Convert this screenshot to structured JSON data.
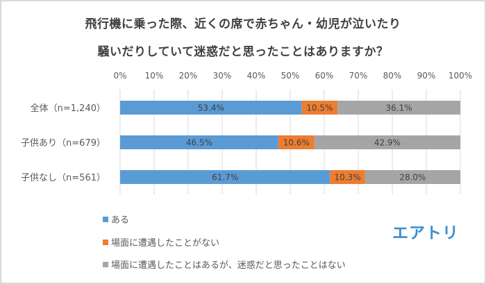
{
  "chart_data": {
    "type": "bar",
    "orientation": "horizontal",
    "stacked": true,
    "title_lines": [
      "飛行機に乗った際、近くの席で赤ちゃん・幼児が泣いたり",
      "騒いだりしていて迷惑だと思ったことはありますか？"
    ],
    "categories": [
      "全体（n=1,240）",
      "子供あり（n=679）",
      "子供なし（n=561）"
    ],
    "series": [
      {
        "name": "ある",
        "color": "#5b9bd5",
        "values": [
          53.4,
          46.5,
          61.7
        ],
        "labels": [
          "53.4%",
          "46.5%",
          "61.7%"
        ]
      },
      {
        "name": "場面に遭遇したことがない",
        "color": "#ed7d31",
        "values": [
          10.5,
          10.6,
          10.3
        ],
        "labels": [
          "10.5%",
          "10.6%",
          "10.3%"
        ]
      },
      {
        "name": "場面に遭遇したことはあるが、迷惑だと思ったことはない",
        "color": "#a5a5a5",
        "values": [
          36.1,
          42.9,
          28.0
        ],
        "labels": [
          "36.1%",
          "42.9%",
          "28.0%"
        ]
      }
    ],
    "x_ticks": [
      "0%",
      "10%",
      "20%",
      "30%",
      "40%",
      "50%",
      "60%",
      "70%",
      "80%",
      "90%",
      "100%"
    ],
    "xlim": [
      0,
      100
    ],
    "grid": true,
    "legend_position": "bottom-left"
  },
  "logo": "エアトリ"
}
